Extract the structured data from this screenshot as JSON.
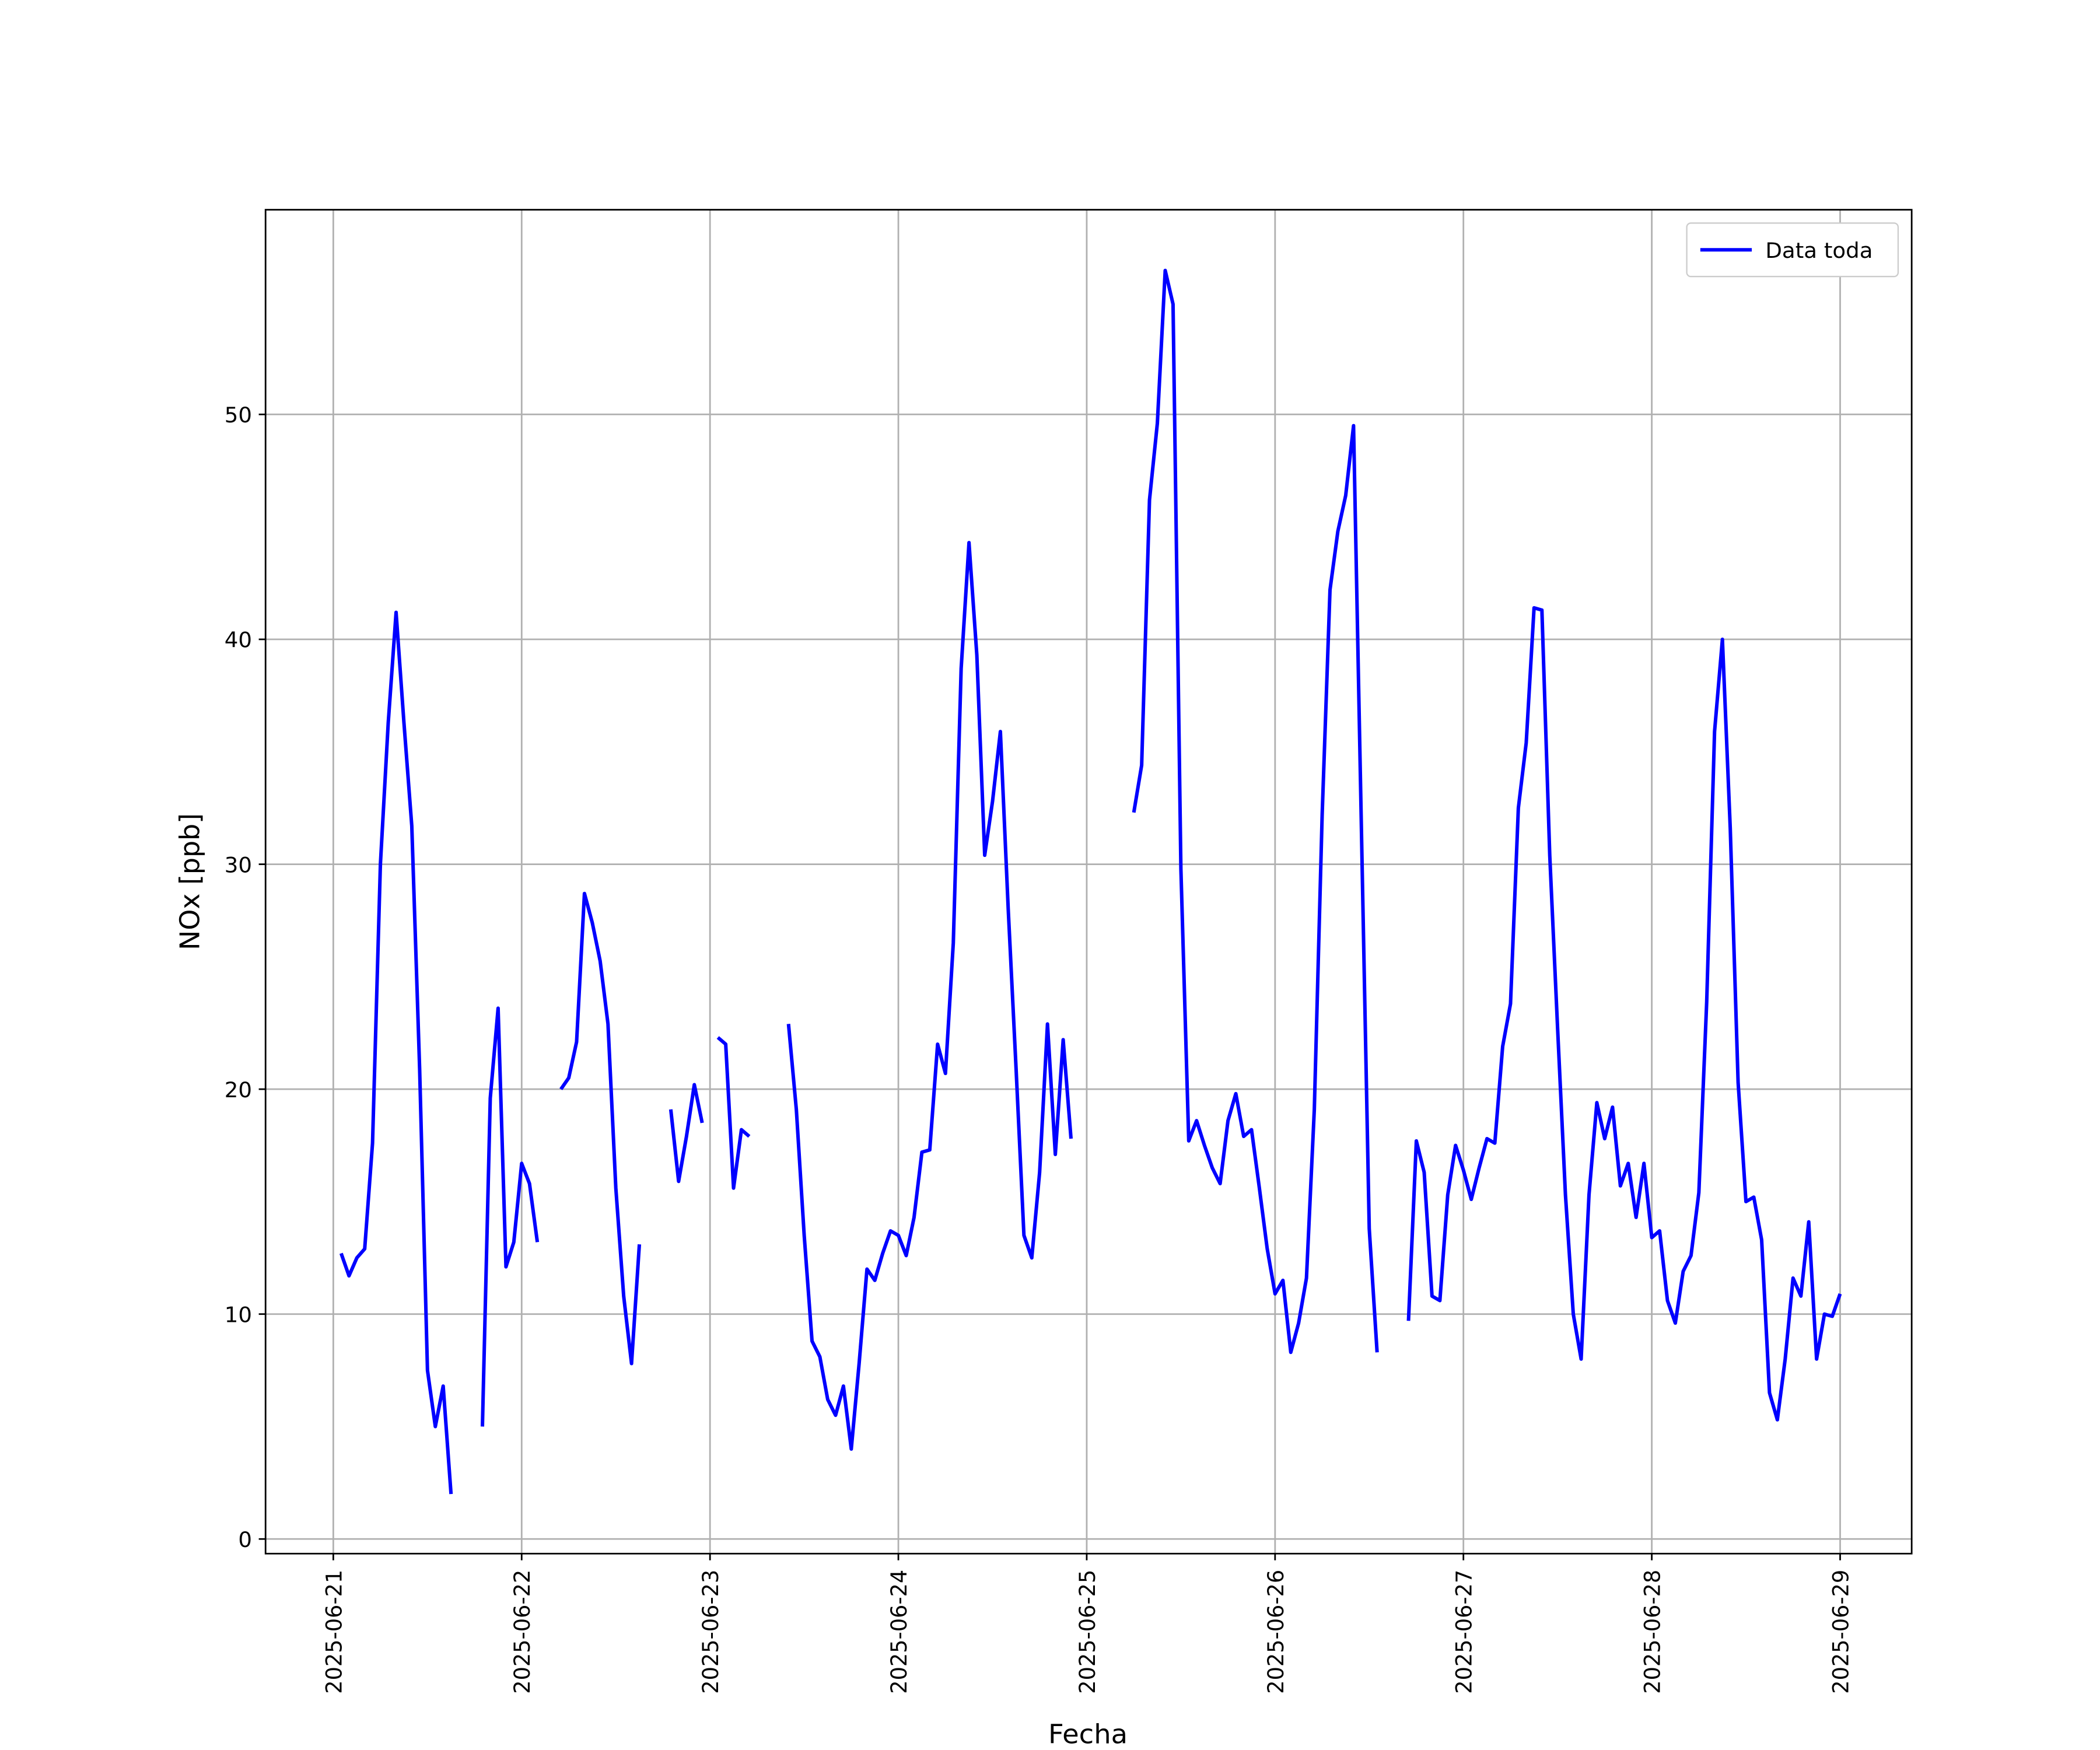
{
  "chart_data": {
    "type": "line",
    "xlabel": "Fecha",
    "ylabel": "NOx [ppb]",
    "legend": "upper right",
    "grid": true,
    "xlim": [
      "2025-06-20 15:22",
      "2025-06-29 09:07"
    ],
    "ylim": [
      -0.65,
      59.1
    ],
    "yticks": [
      0,
      10,
      20,
      30,
      40,
      50
    ],
    "xticks": [
      "2025-06-21",
      "2025-06-22",
      "2025-06-23",
      "2025-06-24",
      "2025-06-25",
      "2025-06-26",
      "2025-06-27",
      "2025-06-28",
      "2025-06-29"
    ],
    "x": [
      "2025-06-21 01:00",
      "2025-06-21 02:00",
      "2025-06-21 03:00",
      "2025-06-21 04:00",
      "2025-06-21 05:00",
      "2025-06-21 06:00",
      "2025-06-21 07:00",
      "2025-06-21 08:00",
      "2025-06-21 09:00",
      "2025-06-21 10:00",
      "2025-06-21 11:00",
      "2025-06-21 12:00",
      "2025-06-21 13:00",
      "2025-06-21 14:00",
      "2025-06-21 15:00",
      "2025-06-21 16:00",
      "2025-06-21 17:00",
      "2025-06-21 18:00",
      "2025-06-21 19:00",
      "2025-06-21 20:00",
      "2025-06-21 21:00",
      "2025-06-21 22:00",
      "2025-06-21 23:00",
      "2025-06-22 00:00",
      "2025-06-22 01:00",
      "2025-06-22 02:00",
      "2025-06-22 03:00",
      "2025-06-22 04:00",
      "2025-06-22 05:00",
      "2025-06-22 06:00",
      "2025-06-22 07:00",
      "2025-06-22 08:00",
      "2025-06-22 09:00",
      "2025-06-22 10:00",
      "2025-06-22 11:00",
      "2025-06-22 12:00",
      "2025-06-22 13:00",
      "2025-06-22 14:00",
      "2025-06-22 15:00",
      "2025-06-22 16:00",
      "2025-06-22 17:00",
      "2025-06-22 18:00",
      "2025-06-22 19:00",
      "2025-06-22 20:00",
      "2025-06-22 21:00",
      "2025-06-22 22:00",
      "2025-06-22 23:00",
      "2025-06-23 00:00",
      "2025-06-23 01:00",
      "2025-06-23 02:00",
      "2025-06-23 03:00",
      "2025-06-23 04:00",
      "2025-06-23 05:00",
      "2025-06-23 06:00",
      "2025-06-23 07:00",
      "2025-06-23 08:00",
      "2025-06-23 09:00",
      "2025-06-23 10:00",
      "2025-06-23 11:00",
      "2025-06-23 12:00",
      "2025-06-23 13:00",
      "2025-06-23 14:00",
      "2025-06-23 15:00",
      "2025-06-23 16:00",
      "2025-06-23 17:00",
      "2025-06-23 18:00",
      "2025-06-23 19:00",
      "2025-06-23 20:00",
      "2025-06-23 21:00",
      "2025-06-23 22:00",
      "2025-06-23 23:00",
      "2025-06-24 00:00",
      "2025-06-24 01:00",
      "2025-06-24 02:00",
      "2025-06-24 03:00",
      "2025-06-24 04:00",
      "2025-06-24 05:00",
      "2025-06-24 06:00",
      "2025-06-24 07:00",
      "2025-06-24 08:00",
      "2025-06-24 09:00",
      "2025-06-24 10:00",
      "2025-06-24 11:00",
      "2025-06-24 12:00",
      "2025-06-24 13:00",
      "2025-06-24 14:00",
      "2025-06-24 15:00",
      "2025-06-24 16:00",
      "2025-06-24 17:00",
      "2025-06-24 18:00",
      "2025-06-24 19:00",
      "2025-06-24 20:00",
      "2025-06-24 21:00",
      "2025-06-24 22:00",
      "2025-06-24 23:00",
      "2025-06-25 00:00",
      "2025-06-25 01:00",
      "2025-06-25 02:00",
      "2025-06-25 03:00",
      "2025-06-25 04:00",
      "2025-06-25 05:00",
      "2025-06-25 06:00",
      "2025-06-25 07:00",
      "2025-06-25 08:00",
      "2025-06-25 09:00",
      "2025-06-25 10:00",
      "2025-06-25 11:00",
      "2025-06-25 12:00",
      "2025-06-25 13:00",
      "2025-06-25 14:00",
      "2025-06-25 15:00",
      "2025-06-25 16:00",
      "2025-06-25 17:00",
      "2025-06-25 18:00",
      "2025-06-25 19:00",
      "2025-06-25 20:00",
      "2025-06-25 21:00",
      "2025-06-25 22:00",
      "2025-06-25 23:00",
      "2025-06-26 00:00",
      "2025-06-26 01:00",
      "2025-06-26 02:00",
      "2025-06-26 03:00",
      "2025-06-26 04:00",
      "2025-06-26 05:00",
      "2025-06-26 06:00",
      "2025-06-26 07:00",
      "2025-06-26 08:00",
      "2025-06-26 09:00",
      "2025-06-26 10:00",
      "2025-06-26 11:00",
      "2025-06-26 12:00",
      "2025-06-26 13:00",
      "2025-06-26 14:00",
      "2025-06-26 15:00",
      "2025-06-26 16:00",
      "2025-06-26 17:00",
      "2025-06-26 18:00",
      "2025-06-26 19:00",
      "2025-06-26 20:00",
      "2025-06-26 21:00",
      "2025-06-26 22:00",
      "2025-06-26 23:00",
      "2025-06-27 00:00",
      "2025-06-27 01:00",
      "2025-06-27 02:00",
      "2025-06-27 03:00",
      "2025-06-27 04:00",
      "2025-06-27 05:00",
      "2025-06-27 06:00",
      "2025-06-27 07:00",
      "2025-06-27 08:00",
      "2025-06-27 09:00",
      "2025-06-27 10:00",
      "2025-06-27 11:00",
      "2025-06-27 12:00",
      "2025-06-27 13:00",
      "2025-06-27 14:00",
      "2025-06-27 15:00",
      "2025-06-27 16:00",
      "2025-06-27 17:00",
      "2025-06-27 18:00",
      "2025-06-27 19:00",
      "2025-06-27 20:00",
      "2025-06-27 21:00",
      "2025-06-27 22:00",
      "2025-06-27 23:00",
      "2025-06-28 00:00",
      "2025-06-28 01:00",
      "2025-06-28 02:00",
      "2025-06-28 03:00",
      "2025-06-28 04:00",
      "2025-06-28 05:00",
      "2025-06-28 06:00",
      "2025-06-28 07:00",
      "2025-06-28 08:00",
      "2025-06-28 09:00",
      "2025-06-28 10:00",
      "2025-06-28 11:00",
      "2025-06-28 12:00",
      "2025-06-28 13:00",
      "2025-06-28 14:00",
      "2025-06-28 15:00",
      "2025-06-28 16:00",
      "2025-06-28 17:00",
      "2025-06-28 18:00",
      "2025-06-28 19:00",
      "2025-06-28 20:00",
      "2025-06-28 21:00",
      "2025-06-28 22:00",
      "2025-06-28 23:00",
      "2025-06-29 00:00"
    ],
    "series": [
      {
        "name": "Data toda",
        "color": "#0000ff",
        "values": [
          12.7,
          11.7,
          12.5,
          12.9,
          17.6,
          30.0,
          36.3,
          41.2,
          36.3,
          31.7,
          20.9,
          7.5,
          5.0,
          6.8,
          2.0,
          null,
          null,
          null,
          5.0,
          19.6,
          23.6,
          12.1,
          13.2,
          16.7,
          15.8,
          13.2,
          null,
          null,
          20.0,
          20.5,
          22.1,
          28.7,
          27.4,
          25.7,
          22.9,
          15.6,
          10.8,
          7.8,
          13.1,
          null,
          null,
          null,
          19.1,
          15.9,
          17.9,
          20.2,
          18.5,
          null,
          22.3,
          22.0,
          15.6,
          18.2,
          17.9,
          null,
          null,
          null,
          null,
          22.9,
          19.1,
          13.5,
          8.8,
          8.1,
          6.2,
          5.5,
          6.8,
          4.0,
          7.8,
          12.0,
          11.5,
          12.7,
          13.7,
          13.5,
          12.6,
          14.3,
          17.2,
          17.3,
          22.0,
          20.7,
          26.5,
          38.7,
          44.3,
          39.3,
          30.4,
          32.8,
          35.9,
          28.0,
          20.9,
          13.5,
          12.5,
          16.3,
          22.9,
          17.1,
          22.2,
          17.8,
          null,
          null,
          null,
          null,
          null,
          null,
          null,
          32.3,
          34.4,
          46.2,
          49.6,
          56.4,
          54.9,
          29.8,
          17.7,
          18.6,
          17.5,
          16.5,
          15.8,
          18.6,
          19.8,
          17.9,
          18.2,
          15.6,
          12.9,
          10.9,
          11.5,
          8.3,
          9.6,
          11.6,
          19.1,
          32.2,
          42.2,
          44.8,
          46.4,
          49.5,
          31.6,
          13.8,
          8.3,
          null,
          null,
          null,
          9.7,
          17.7,
          16.3,
          10.8,
          10.6,
          15.3,
          17.5,
          16.4,
          15.1,
          16.5,
          17.8,
          17.6,
          21.9,
          23.8,
          32.5,
          35.4,
          41.4,
          41.3,
          30.4,
          22.7,
          15.3,
          10.0,
          8.0,
          15.3,
          19.4,
          17.8,
          19.2,
          15.7,
          16.7,
          14.3,
          16.7,
          13.4,
          13.7,
          10.6,
          9.6,
          11.9,
          12.6,
          15.4,
          23.9,
          35.9,
          40.0,
          31.6,
          20.3,
          15.0,
          15.2,
          13.3,
          6.5,
          5.3,
          8.0,
          11.6,
          10.8,
          14.1,
          8.0,
          10.0,
          9.9,
          10.9
        ]
      }
    ]
  }
}
